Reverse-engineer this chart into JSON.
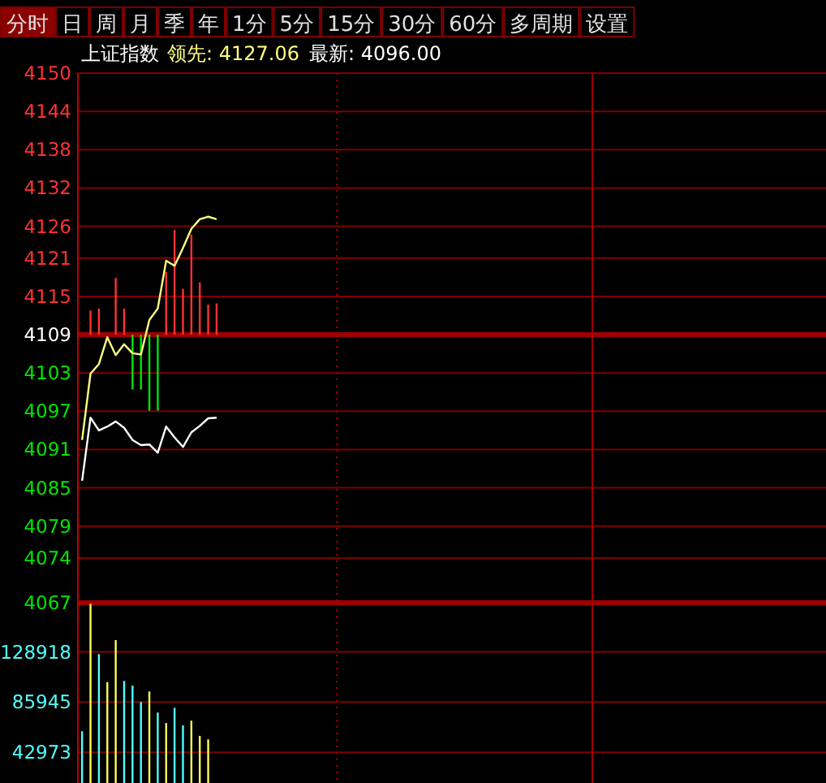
{
  "chart_data": [
    {
      "type": "other",
      "annotations": [
        "分时",
        "日",
        "周",
        "月",
        "季",
        "年",
        "1分",
        "5分",
        "15分",
        "30分",
        "60分",
        "多周期",
        "设置"
      ]
    },
    {
      "type": "line",
      "title": "上证指数",
      "grid": "y",
      "tick_labels": "y",
      "annotations": [
        "领先: 4127.06",
        "最新: 4096.00"
      ],
      "categories": [
        null,
        null,
        null,
        null,
        null,
        null,
        null,
        null,
        null,
        null,
        null,
        null,
        null,
        null,
        null,
        null,
        null,
        null,
        null,
        null,
        null,
        null,
        null,
        null,
        null,
        null,
        null,
        null,
        null,
        null,
        null,
        null,
        null,
        null,
        null,
        null,
        null,
        null,
        null,
        null,
        null,
        null,
        null,
        null,
        null,
        null,
        null,
        null,
        null,
        null,
        null,
        null,
        null,
        null,
        null,
        null,
        null,
        null,
        null,
        null,
        null,
        null,
        null,
        null,
        null,
        null,
        null,
        null,
        null,
        null,
        null,
        null,
        null,
        null,
        null,
        null,
        null,
        null,
        null,
        null,
        null,
        null,
        null,
        null,
        null,
        null,
        null,
        null,
        null
      ],
      "ylim": [
        4067,
        4150
      ],
      "yticks": [
        4150,
        4144,
        4138,
        4132,
        4126,
        4121,
        4115,
        4109,
        4103,
        4097,
        4091,
        4085,
        4079,
        4074,
        4067
      ],
      "ref_lines": [
        {
          "axis": "y",
          "value": 4109,
          "color": "#a00000"
        }
      ],
      "series": [
        {
          "type": "bar",
          "base": [
            null,
            4109,
            4109,
            null,
            4109,
            4109,
            4109,
            4109,
            4109,
            4109,
            4109,
            4109,
            4109,
            4109,
            4109,
            4109,
            4109,
            null,
            null,
            null,
            null,
            null,
            null,
            null,
            null,
            null,
            null,
            null,
            null,
            null,
            null,
            null,
            null,
            null,
            null,
            null,
            null,
            null,
            null,
            null,
            null,
            null,
            null,
            null,
            null,
            null,
            null,
            null,
            null,
            null,
            null,
            null,
            null,
            null,
            null,
            null,
            null,
            null,
            null,
            null,
            null,
            null,
            null,
            null,
            null,
            null,
            null,
            null,
            null,
            null,
            null,
            null,
            null,
            null,
            null,
            null,
            null,
            null,
            null,
            null,
            null,
            null,
            null,
            null,
            null,
            null,
            null,
            null,
            null
          ],
          "values": [
            null,
            3.8,
            4.1,
            null,
            8.9,
            4.1,
            -8.6,
            -8.6,
            -11.9,
            -11.9,
            9.8,
            16.4,
            7.2,
            15.7,
            8.2,
            4.7,
            4.9,
            null,
            null,
            null,
            null,
            null,
            null,
            null,
            null,
            null,
            null,
            null,
            null,
            null,
            null,
            null,
            null,
            null,
            null,
            null,
            null,
            null,
            null,
            null,
            null,
            null,
            null,
            null,
            null,
            null,
            null,
            null,
            null,
            null,
            null,
            null,
            null,
            null,
            null,
            null,
            null,
            null,
            null,
            null,
            null,
            null,
            null,
            null,
            null,
            null,
            null,
            null,
            null,
            null,
            null,
            null,
            null,
            null,
            null,
            null,
            null,
            null,
            null,
            null,
            null,
            null,
            null,
            null,
            null,
            null,
            null,
            null,
            null
          ],
          "colors": [
            null,
            "#ff3232",
            "#ff3232",
            null,
            "#ff3232",
            "#ff3232",
            "#00e600",
            "#00e600",
            "#00e600",
            "#00e600",
            "#ff3232",
            "#ff3232",
            "#ff3232",
            "#ff3232",
            "#ff3232",
            "#ff3232",
            "#ff3232",
            null,
            null,
            null,
            null,
            null,
            null,
            null,
            null,
            null,
            null,
            null,
            null,
            null,
            null,
            null,
            null,
            null,
            null,
            null,
            null,
            null,
            null,
            null,
            null,
            null,
            null,
            null,
            null,
            null,
            null,
            null,
            null,
            null,
            null,
            null,
            null,
            null,
            null,
            null,
            null,
            null,
            null,
            null,
            null,
            null,
            null,
            null,
            null,
            null,
            null,
            null,
            null,
            null,
            null,
            null,
            null,
            null,
            null,
            null,
            null,
            null,
            null,
            null,
            null,
            null,
            null,
            null,
            null,
            null,
            null,
            null,
            null
          ]
        },
        {
          "type": "line",
          "color": "#ffff80",
          "values": [
            4092.5,
            4102.9,
            4104.4,
            4108.6,
            4105.8,
            4107.5,
            4106.1,
            4105.9,
            4111.3,
            4113.1,
            4120.6,
            4119.8,
            4122.6,
            4125.6,
            4127.1,
            4127.5,
            4127.1,
            null,
            null,
            null,
            null,
            null,
            null,
            null,
            null,
            null,
            null,
            null,
            null,
            null,
            null,
            null,
            null,
            null,
            null,
            null,
            null,
            null,
            null,
            null,
            null,
            null,
            null,
            null,
            null,
            null,
            null,
            null,
            null,
            null,
            null,
            null,
            null,
            null,
            null,
            null,
            null,
            null,
            null,
            null,
            null,
            null,
            null,
            null,
            null,
            null,
            null,
            null,
            null,
            null,
            null,
            null,
            null,
            null,
            null,
            null,
            null,
            null,
            null,
            null,
            null,
            null,
            null,
            null,
            null,
            null,
            null,
            null,
            null
          ]
        },
        {
          "type": "line",
          "color": "#ffffff",
          "values": [
            4086.1,
            4096.0,
            4094.0,
            4094.6,
            4095.4,
            4094.4,
            4092.5,
            4091.7,
            4091.8,
            4090.5,
            4094.6,
            4092.9,
            4091.4,
            4093.7,
            4094.7,
            4095.9,
            4096.0,
            null,
            null,
            null,
            null,
            null,
            null,
            null,
            null,
            null,
            null,
            null,
            null,
            null,
            null,
            null,
            null,
            null,
            null,
            null,
            null,
            null,
            null,
            null,
            null,
            null,
            null,
            null,
            null,
            null,
            null,
            null,
            null,
            null,
            null,
            null,
            null,
            null,
            null,
            null,
            null,
            null,
            null,
            null,
            null,
            null,
            null,
            null,
            null,
            null,
            null,
            null,
            null,
            null,
            null,
            null,
            null,
            null,
            null,
            null,
            null,
            null,
            null,
            null,
            null,
            null,
            null,
            null,
            null,
            null,
            null,
            null,
            null
          ]
        }
      ]
    },
    {
      "type": "bar",
      "grid": "y",
      "tick_labels": "y",
      "ylim": [
        0,
        171000
      ],
      "yticks": [
        42973,
        85945,
        128918
      ],
      "categories": [
        null,
        null,
        null,
        null,
        null,
        null,
        null,
        null,
        null,
        null,
        null,
        null,
        null,
        null,
        null,
        null,
        null,
        null,
        null,
        null,
        null,
        null,
        null,
        null,
        null,
        null,
        null,
        null,
        null,
        null,
        null,
        null,
        null,
        null,
        null,
        null,
        null,
        null,
        null,
        null,
        null,
        null,
        null,
        null,
        null,
        null,
        null,
        null,
        null,
        null,
        null,
        null,
        null,
        null,
        null,
        null,
        null,
        null,
        null,
        null,
        null,
        null,
        null,
        null,
        null,
        null,
        null,
        null,
        null,
        null,
        null,
        null,
        null,
        null,
        null,
        null,
        null,
        null,
        null,
        null,
        null,
        null,
        null,
        null,
        null,
        null,
        null,
        null,
        null
      ],
      "values": [
        61000,
        170000,
        127000,
        103000,
        139000,
        104000,
        100000,
        86000,
        95000,
        77000,
        68000,
        81000,
        66000,
        70000,
        57000,
        54000,
        null,
        null,
        null,
        null,
        null,
        null,
        null,
        null,
        null,
        null,
        null,
        null,
        null,
        null,
        null,
        null,
        null,
        null,
        null,
        null,
        null,
        null,
        null,
        null,
        null,
        null,
        null,
        null,
        null,
        null,
        null,
        null,
        null,
        null,
        null,
        null,
        null,
        null,
        null,
        null,
        null,
        null,
        null,
        null,
        null,
        null,
        null,
        null,
        null,
        null,
        null,
        null,
        null,
        null,
        null,
        null,
        null,
        null,
        null,
        null,
        null,
        null,
        null,
        null,
        null,
        null,
        null,
        null,
        null,
        null,
        null,
        null,
        null
      ],
      "colors": [
        "#54fcfc",
        "#fcfc54",
        "#54fcfc",
        "#fcfc54",
        "#fcfc54",
        "#54fcfc",
        "#54fcfc",
        "#54fcfc",
        "#fcfc54",
        "#54fcfc",
        "#fcfc54",
        "#54fcfc",
        "#54fcfc",
        "#fcfc54",
        "#fcfc54",
        "#fcfc54",
        null,
        null,
        null,
        null,
        null,
        null,
        null,
        null,
        null,
        null,
        null,
        null,
        null,
        null,
        null,
        null,
        null,
        null,
        null,
        null,
        null,
        null,
        null,
        null,
        null,
        null,
        null,
        null,
        null,
        null,
        null,
        null,
        null,
        null,
        null,
        null,
        null,
        null,
        null,
        null,
        null,
        null,
        null,
        null,
        null,
        null,
        null,
        null,
        null,
        null,
        null,
        null,
        null,
        null,
        null,
        null,
        null,
        null,
        null,
        null,
        null,
        null,
        null,
        null,
        null,
        null,
        null,
        null,
        null,
        null,
        null,
        null,
        null
      ]
    }
  ]
}
